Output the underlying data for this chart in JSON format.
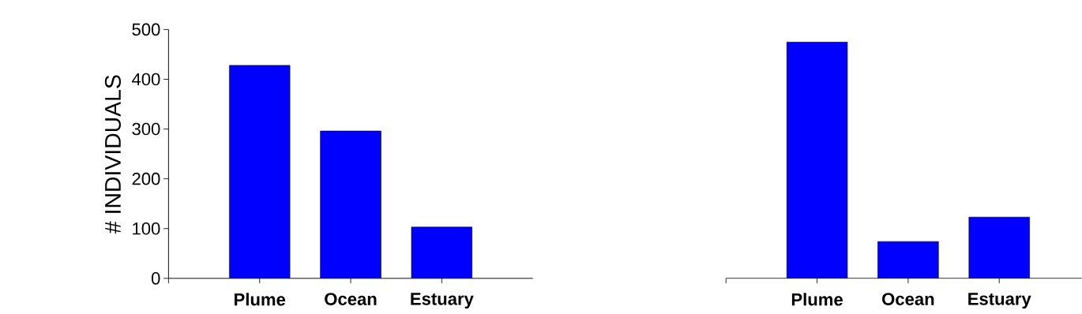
{
  "chart_data": [
    {
      "type": "bar",
      "ylabel": "# INDIVIDUALS",
      "categories": [
        null,
        "Plume",
        "Ocean",
        "Estuary"
      ],
      "values": [
        null,
        428,
        296,
        103
      ],
      "color": "#0000ff",
      "ylim": [
        0,
        500
      ],
      "yticks": [
        0,
        100,
        200,
        300,
        400,
        500
      ]
    },
    {
      "type": "bar",
      "categories": [
        null,
        "Plume",
        "Ocean",
        "Estuary"
      ],
      "values": [
        null,
        475,
        74,
        123
      ],
      "color": "#0000ff",
      "ylim": [
        0,
        500
      ],
      "yticks": [
        0,
        100,
        200,
        300,
        400,
        500
      ],
      "tick_labels": "x"
    }
  ]
}
